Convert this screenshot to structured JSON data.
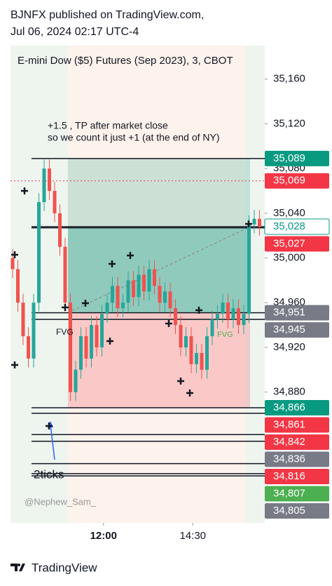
{
  "header": {
    "line1": "BJNFX published on TradingView.com,",
    "line2": "Jul 06, 2024 02:17 UTC-4"
  },
  "footer": {
    "brand": "TradingView"
  },
  "chart_data": {
    "type": "candlestick",
    "title": "E-mini Dow ($5) Futures (Sep 2023), 3, CBOT",
    "annotations": [
      "+1.5 , TP after market close",
      "so we count it just +1 (at the end of NY)",
      "FVG",
      "FVG",
      "2ticks",
      "@Nephew_Sam_"
    ],
    "ylim": [
      34763,
      35190
    ],
    "yticks": [
      {
        "value": 35160,
        "label": "35,160"
      },
      {
        "value": 35120,
        "label": "35,120"
      },
      {
        "value": 35080,
        "label": "35,080"
      },
      {
        "value": 35040,
        "label": "35,040"
      },
      {
        "value": 35000,
        "label": "35,000"
      },
      {
        "value": 34960,
        "label": "34,960"
      },
      {
        "value": 34920,
        "label": "34,920"
      },
      {
        "value": 34880,
        "label": "34,880"
      }
    ],
    "xlim": [
      -0.4,
      48
    ],
    "xticks": [
      {
        "value": 17.3,
        "label": "12:00"
      },
      {
        "value": 34.3,
        "label": "14:30"
      }
    ],
    "open": [
      35000,
      34990,
      34960,
      34930,
      34910,
      34960,
      35050,
      35080,
      35060,
      35040,
      35010,
      34960,
      34880,
      34900,
      34930,
      34910,
      34940,
      34920,
      34950,
      34960,
      34975,
      34955,
      34960,
      34980,
      34965,
      34985,
      34970,
      34990,
      34975,
      34960,
      34970,
      34955,
      34940,
      34920,
      34930,
      34905,
      34915,
      34900,
      34930,
      34945,
      34950,
      34960,
      34945,
      34955,
      34940,
      34950,
      35030,
      35035
    ],
    "high": [
      35008,
      34998,
      34968,
      34938,
      34968,
      35058,
      35088,
      35088,
      35068,
      35048,
      35018,
      34968,
      34908,
      34938,
      34938,
      34948,
      34948,
      34958,
      34968,
      34983,
      34983,
      34968,
      34988,
      34988,
      34993,
      34993,
      34998,
      34998,
      34983,
      34978,
      34978,
      34963,
      34948,
      34938,
      34938,
      34923,
      34923,
      34938,
      34953,
      34958,
      34968,
      34968,
      34963,
      34963,
      34958,
      35038,
      35043,
      35043
    ],
    "low": [
      34982,
      34952,
      34922,
      34902,
      34902,
      34952,
      35042,
      35052,
      35032,
      35002,
      34952,
      34872,
      34872,
      34892,
      34902,
      34902,
      34912,
      34912,
      34942,
      34952,
      34947,
      34947,
      34952,
      34957,
      34957,
      34962,
      34962,
      34967,
      34952,
      34952,
      34947,
      34932,
      34912,
      34912,
      34897,
      34897,
      34892,
      34892,
      34922,
      34937,
      34942,
      34937,
      34937,
      34932,
      34932,
      34942,
      35022,
      35020
    ],
    "close": [
      34990,
      34960,
      34930,
      34910,
      34960,
      35050,
      35080,
      35060,
      35040,
      35010,
      34960,
      34880,
      34900,
      34930,
      34910,
      34940,
      34920,
      34950,
      34960,
      34975,
      34955,
      34960,
      34980,
      34965,
      34985,
      34970,
      34990,
      34975,
      34960,
      34970,
      34955,
      34940,
      34920,
      34930,
      34905,
      34915,
      34900,
      34930,
      34945,
      34950,
      34960,
      34945,
      34955,
      34940,
      34950,
      35030,
      35035,
      35028
    ],
    "up_color": "#26a69a",
    "down_color": "#ef5350",
    "position": {
      "target": 35089,
      "entry": 34951,
      "stop": 34866,
      "current": 35028
    },
    "price_labels": [
      {
        "value": 35089,
        "label": "35,089",
        "color": "#089981",
        "text_color": "#ffffff"
      },
      {
        "value": 35069,
        "label": "35,069",
        "color": "#f23645",
        "text_color": "#ffffff"
      },
      {
        "value": 35028,
        "label": "35,028",
        "color": "#ffffff",
        "text_color": "#089981"
      },
      {
        "value": 35027,
        "label": "35,027",
        "color": "#f23645",
        "text_color": "#ffffff"
      },
      {
        "value": 34951,
        "label": "34,951",
        "color": "#787b86",
        "text_color": "#ffffff"
      },
      {
        "value": 34945,
        "label": "34,945",
        "color": "#787b86",
        "text_color": "#ffffff"
      },
      {
        "value": 34866,
        "label": "34,866",
        "color": "#089981",
        "text_color": "#ffffff"
      },
      {
        "value": 34861,
        "label": "34,861",
        "color": "#f23645",
        "text_color": "#ffffff"
      },
      {
        "value": 34842,
        "label": "34,842",
        "color": "#f23645",
        "text_color": "#ffffff"
      },
      {
        "value": 34836,
        "label": "34,836",
        "color": "#787b86",
        "text_color": "#ffffff"
      },
      {
        "value": 34816,
        "label": "34,816",
        "color": "#f23645",
        "text_color": "#ffffff"
      },
      {
        "value": 34807,
        "label": "34,807",
        "color": "#4caf50",
        "text_color": "#ffffff"
      },
      {
        "value": 34805,
        "label": "34,805",
        "color": "#787b86",
        "text_color": "#ffffff"
      }
    ]
  }
}
